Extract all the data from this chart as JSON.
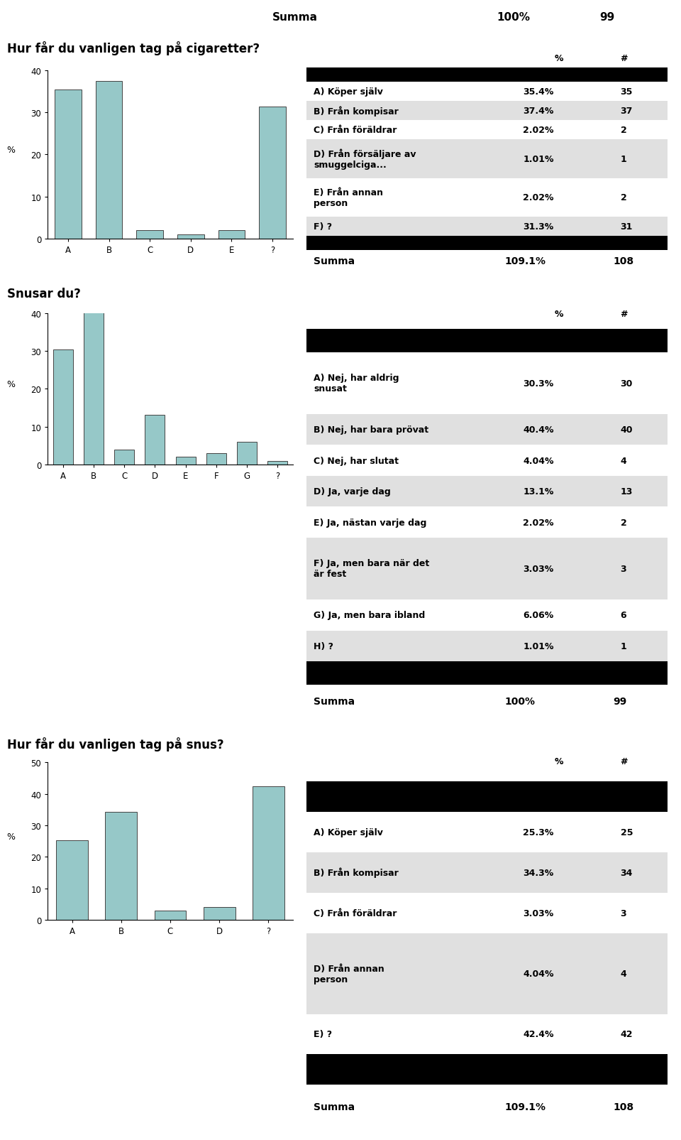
{
  "top_summa": {
    "label": "Summa",
    "pct": "100%",
    "n": "99"
  },
  "q1_title": "Hur får du vanligen tag på cigaretter?",
  "q1_bars": {
    "categories": [
      "A",
      "B",
      "C",
      "D",
      "E",
      "?"
    ],
    "values": [
      35.4,
      37.4,
      2.02,
      1.01,
      2.02,
      31.3
    ]
  },
  "q1_ylim": [
    0,
    40
  ],
  "q1_yticks": [
    0,
    10,
    20,
    30,
    40
  ],
  "q1_table": [
    {
      "label": "A) Köper själv",
      "pct": "35.4%",
      "n": "35",
      "lines": 1
    },
    {
      "label": "B) Från kompisar",
      "pct": "37.4%",
      "n": "37",
      "lines": 1
    },
    {
      "label": "C) Från föräldrar",
      "pct": "2.02%",
      "n": "2",
      "lines": 1
    },
    {
      "label": "D) Från försäljare av\nsmuggelciga...",
      "pct": "1.01%",
      "n": "1",
      "lines": 2
    },
    {
      "label": "E) Från annan\nperson",
      "pct": "2.02%",
      "n": "2",
      "lines": 2
    },
    {
      "label": "F) ?",
      "pct": "31.3%",
      "n": "31",
      "lines": 1
    }
  ],
  "q1_summa": {
    "label": "Summa",
    "pct": "109.1%",
    "n": "108"
  },
  "q2_title": "Snusar du?",
  "q2_bars": {
    "categories": [
      "A",
      "B",
      "C",
      "D",
      "E",
      "F",
      "G",
      "?"
    ],
    "values": [
      30.3,
      40.4,
      4.04,
      13.1,
      2.02,
      3.03,
      6.06,
      1.01
    ]
  },
  "q2_ylim": [
    0,
    40
  ],
  "q2_yticks": [
    0,
    10,
    20,
    30,
    40
  ],
  "q2_table": [
    {
      "label": "A) Nej, har aldrig\nsnusat",
      "pct": "30.3%",
      "n": "30",
      "lines": 2
    },
    {
      "label": "B) Nej, har bara prövat",
      "pct": "40.4%",
      "n": "40",
      "lines": 1
    },
    {
      "label": "C) Nej, har slutat",
      "pct": "4.04%",
      "n": "4",
      "lines": 1
    },
    {
      "label": "D) Ja, varje dag",
      "pct": "13.1%",
      "n": "13",
      "lines": 1
    },
    {
      "label": "E) Ja, nästan varje dag",
      "pct": "2.02%",
      "n": "2",
      "lines": 1
    },
    {
      "label": "F) Ja, men bara när det\när fest",
      "pct": "3.03%",
      "n": "3",
      "lines": 2
    },
    {
      "label": "G) Ja, men bara ibland",
      "pct": "6.06%",
      "n": "6",
      "lines": 1
    },
    {
      "label": "H) ?",
      "pct": "1.01%",
      "n": "1",
      "lines": 1
    }
  ],
  "q2_summa": {
    "label": "Summa",
    "pct": "100%",
    "n": "99"
  },
  "q3_title": "Hur får du vanligen tag på snus?",
  "q3_bars": {
    "categories": [
      "A",
      "B",
      "C",
      "D",
      "?"
    ],
    "values": [
      25.3,
      34.3,
      3.03,
      4.04,
      42.4
    ]
  },
  "q3_ylim": [
    0,
    50
  ],
  "q3_yticks": [
    0,
    10,
    20,
    30,
    40,
    50
  ],
  "q3_table": [
    {
      "label": "A) Köper själv",
      "pct": "25.3%",
      "n": "25",
      "lines": 1
    },
    {
      "label": "B) Från kompisar",
      "pct": "34.3%",
      "n": "34",
      "lines": 1
    },
    {
      "label": "C) Från föräldrar",
      "pct": "3.03%",
      "n": "3",
      "lines": 1
    },
    {
      "label": "D) Från annan\nperson",
      "pct": "4.04%",
      "n": "4",
      "lines": 2
    },
    {
      "label": "E) ?",
      "pct": "42.4%",
      "n": "42",
      "lines": 1
    }
  ],
  "q3_summa": {
    "label": "Summa",
    "pct": "109.1%",
    "n": "108"
  },
  "bar_color": "#96c8c8",
  "bar_edge_color": "#444444",
  "table_odd_bg": "#ffffff",
  "table_even_bg": "#e0e0e0",
  "title_fontsize": 12,
  "axis_label_fontsize": 9,
  "tick_fontsize": 8.5,
  "table_fontsize": 9,
  "summa_fontsize": 10
}
